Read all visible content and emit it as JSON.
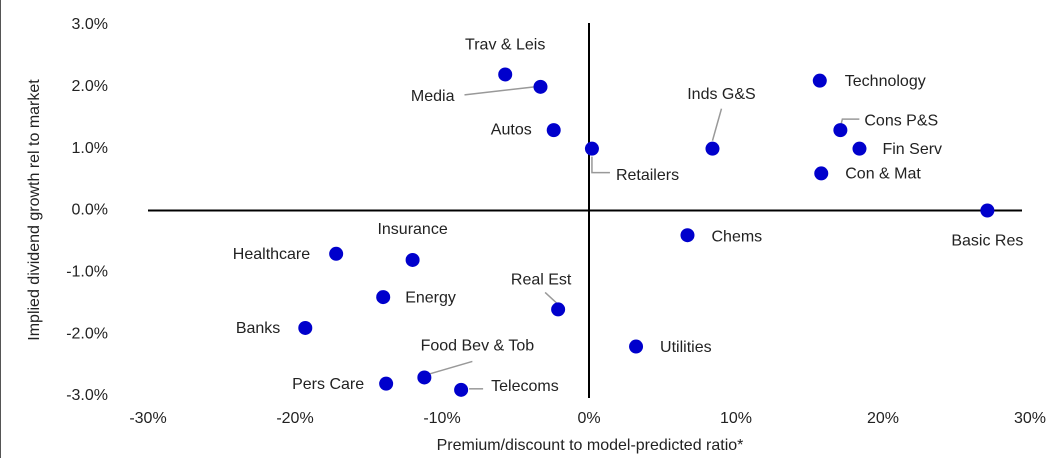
{
  "chart_data": {
    "type": "scatter",
    "x_label": "Premium/discount to model-predicted ratio*",
    "y_label": "Implied dividend growth rel to market",
    "xlim": [
      -30,
      30
    ],
    "ylim": [
      -3,
      3
    ],
    "xticks": [
      {
        "value": -30,
        "label": "-30%"
      },
      {
        "value": -20,
        "label": "-20%"
      },
      {
        "value": -10,
        "label": "-10%"
      },
      {
        "value": 0,
        "label": "0%"
      },
      {
        "value": 10,
        "label": "10%"
      },
      {
        "value": 20,
        "label": "20%"
      },
      {
        "value": 30,
        "label": "30%"
      }
    ],
    "yticks": [
      {
        "value": -3,
        "label": "-3.0%"
      },
      {
        "value": -2,
        "label": "-2.0%"
      },
      {
        "value": -1,
        "label": "-1.0%"
      },
      {
        "value": 0,
        "label": "0.0%"
      },
      {
        "value": 1,
        "label": "1.0%"
      },
      {
        "value": 2,
        "label": "2.0%"
      },
      {
        "value": 3,
        "label": "3.0%"
      }
    ],
    "grid": false,
    "series": [
      {
        "color": "#0000cc",
        "labels": [
          "Trav & Leis",
          "Media",
          "Autos",
          "Retailers",
          "Inds G&S",
          "Technology",
          "Cons P&S",
          "Fin Serv",
          "Con & Mat",
          "Basic Res",
          "Chems",
          "Insurance",
          "Healthcare",
          "Energy",
          "Banks",
          "Real Est",
          "Utilities",
          "Food Bev & Tob",
          "Pers Care",
          "Telecoms"
        ],
        "x": [
          -5.7,
          -3.3,
          -2.4,
          0.2,
          8.4,
          15.7,
          17.1,
          18.4,
          15.8,
          27.1,
          6.7,
          -12.0,
          -17.2,
          -14.0,
          -19.3,
          -2.1,
          3.2,
          -11.2,
          -13.8,
          -8.7
        ],
        "values": [
          2.2,
          2.0,
          1.3,
          1.0,
          1.0,
          2.1,
          1.3,
          1.0,
          0.6,
          0,
          -0.4,
          -0.8,
          -0.7,
          -1.4,
          -1.9,
          -1.6,
          -2.2,
          -2.7,
          -2.8,
          -2.9
        ]
      }
    ]
  }
}
